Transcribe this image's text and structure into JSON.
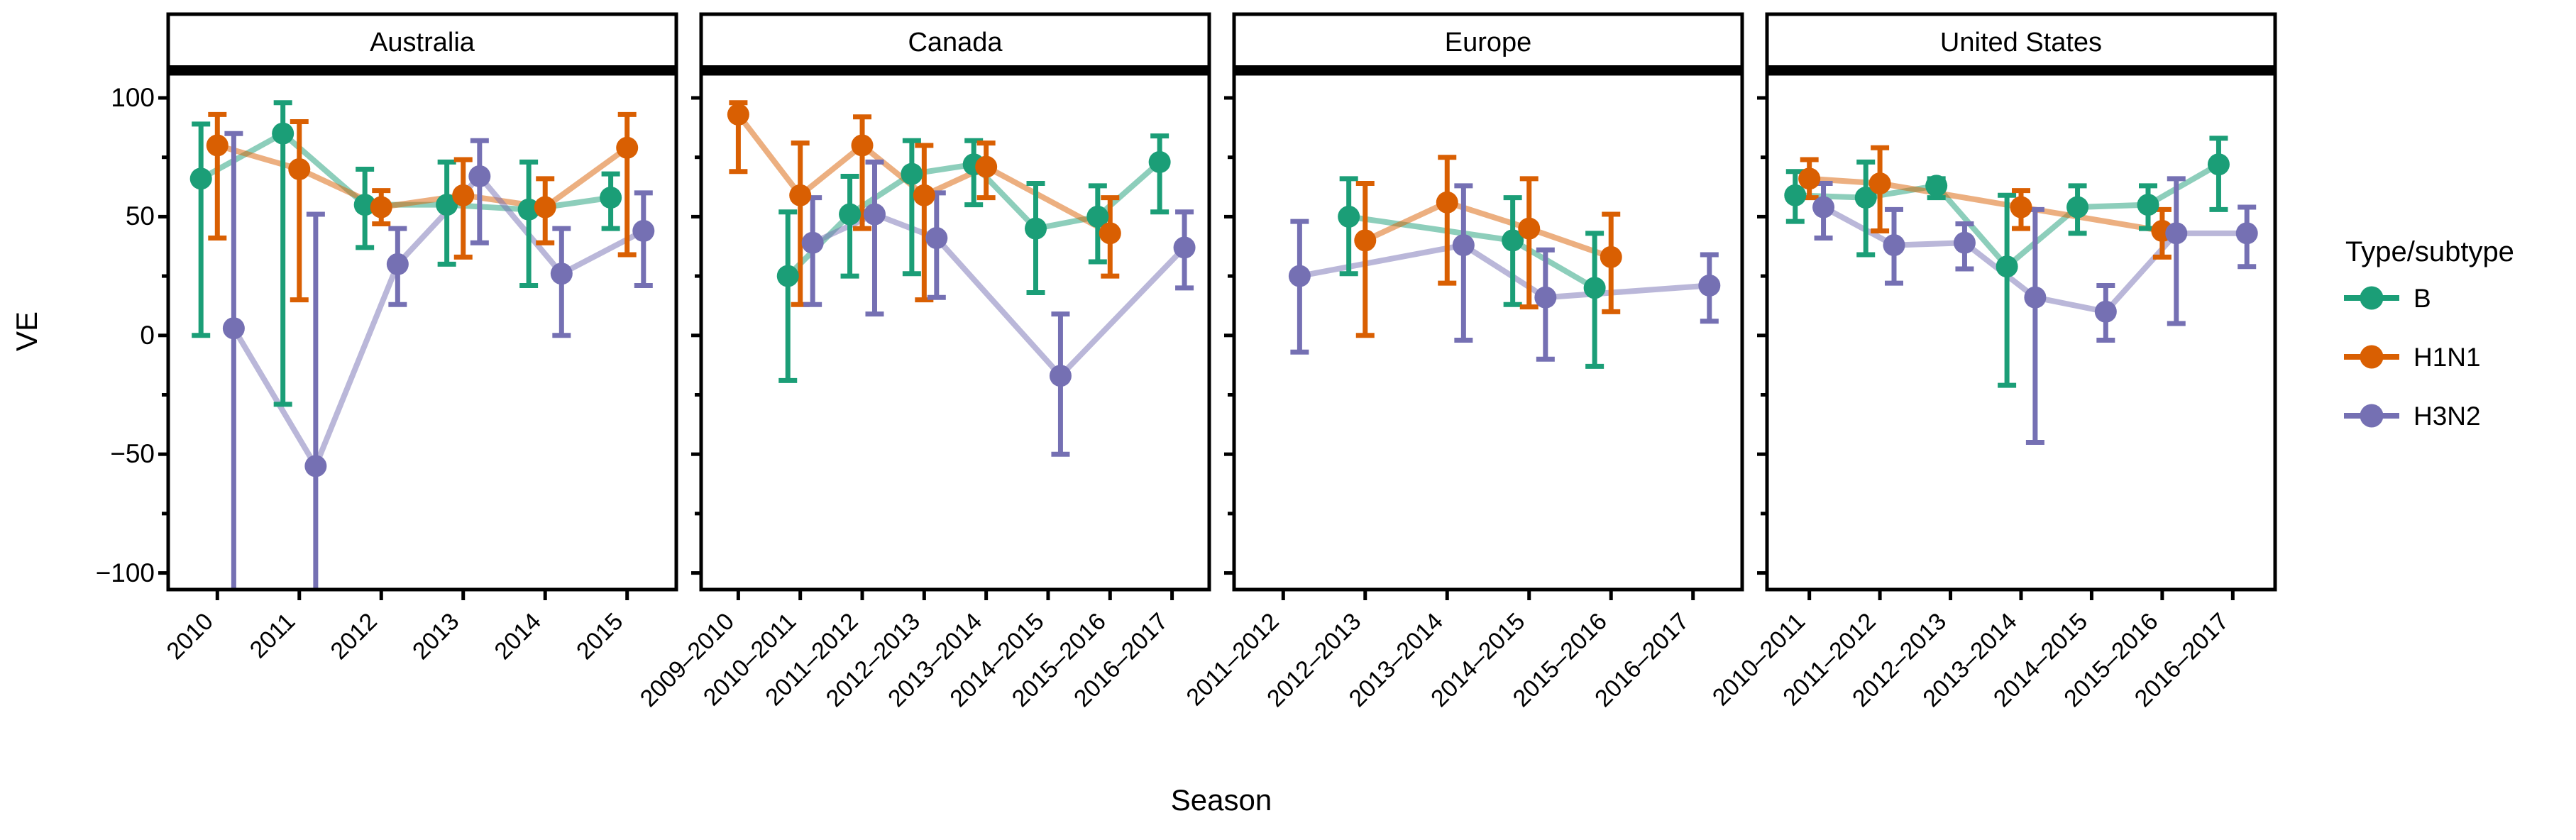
{
  "chart_data": {
    "type": "line",
    "title": "",
    "xlabel": "Season",
    "ylabel": "VE",
    "ylim": [
      -107,
      110
    ],
    "grid": false,
    "yticks": [
      {
        "value": 100,
        "label": "100"
      },
      {
        "value": 50,
        "label": "50"
      },
      {
        "value": 0,
        "label": "0"
      },
      {
        "value": -50,
        "label": "−50"
      },
      {
        "value": -100,
        "label": "−100"
      }
    ],
    "yticks_minor": [
      75,
      25,
      -25,
      -75
    ],
    "legend": {
      "title": "Type/subtype",
      "position": "right",
      "entries": [
        {
          "name": "B",
          "label": "B",
          "color": "#1B9E77"
        },
        {
          "name": "H1N1",
          "label": "H1N1",
          "color": "#D95F02"
        },
        {
          "name": "H3N2",
          "label": "H3N2",
          "color": "#7570B3"
        }
      ]
    },
    "panels": [
      {
        "title": "Australia",
        "categories": [
          "2010",
          "2011",
          "2012",
          "2013",
          "2014",
          "2015"
        ],
        "series": [
          {
            "name": "B",
            "color": "#1B9E77",
            "points": [
              {
                "x": "2010",
                "y": 66,
                "lo": 0,
                "hi": 89
              },
              {
                "x": "2011",
                "y": 85,
                "lo": -29,
                "hi": 98
              },
              {
                "x": "2012",
                "y": 55,
                "lo": 37,
                "hi": 70
              },
              {
                "x": "2013",
                "y": 55,
                "lo": 30,
                "hi": 73
              },
              {
                "x": "2014",
                "y": 53,
                "lo": 21,
                "hi": 73
              },
              {
                "x": "2015",
                "y": 58,
                "lo": 45,
                "hi": 68
              }
            ]
          },
          {
            "name": "H1N1",
            "color": "#D95F02",
            "points": [
              {
                "x": "2010",
                "y": 80,
                "lo": 41,
                "hi": 93
              },
              {
                "x": "2011",
                "y": 70,
                "lo": 15,
                "hi": 90
              },
              {
                "x": "2012",
                "y": 54,
                "lo": 47,
                "hi": 61
              },
              {
                "x": "2013",
                "y": 59,
                "lo": 33,
                "hi": 74
              },
              {
                "x": "2014",
                "y": 54,
                "lo": 39,
                "hi": 66
              },
              {
                "x": "2015",
                "y": 79,
                "lo": 34,
                "hi": 93
              }
            ]
          },
          {
            "name": "H3N2",
            "color": "#7570B3",
            "points": [
              {
                "x": "2010",
                "y": 3,
                "lo": -120,
                "hi": 85
              },
              {
                "x": "2011",
                "y": -55,
                "lo": -120,
                "hi": 51
              },
              {
                "x": "2012",
                "y": 30,
                "lo": 13,
                "hi": 45
              },
              {
                "x": "2013",
                "y": 67,
                "lo": 39,
                "hi": 82
              },
              {
                "x": "2014",
                "y": 26,
                "lo": 0,
                "hi": 45
              },
              {
                "x": "2015",
                "y": 44,
                "lo": 21,
                "hi": 60
              }
            ]
          }
        ]
      },
      {
        "title": "Canada",
        "categories": [
          "2009–2010",
          "2010–2011",
          "2011–2012",
          "2012–2013",
          "2013–2014",
          "2014–2015",
          "2015–2016",
          "2016–2017"
        ],
        "series": [
          {
            "name": "B",
            "color": "#1B9E77",
            "points": [
              {
                "x": "2010–2011",
                "y": 25,
                "lo": -19,
                "hi": 52
              },
              {
                "x": "2011–2012",
                "y": 51,
                "lo": 25,
                "hi": 67
              },
              {
                "x": "2012–2013",
                "y": 68,
                "lo": 26,
                "hi": 82
              },
              {
                "x": "2013–2014",
                "y": 72,
                "lo": 55,
                "hi": 82
              },
              {
                "x": "2014–2015",
                "y": 45,
                "lo": 18,
                "hi": 64
              },
              {
                "x": "2015–2016",
                "y": 50,
                "lo": 31,
                "hi": 63
              },
              {
                "x": "2016–2017",
                "y": 73,
                "lo": 52,
                "hi": 84
              }
            ]
          },
          {
            "name": "H1N1",
            "color": "#D95F02",
            "points": [
              {
                "x": "2009–2010",
                "y": 93,
                "lo": 69,
                "hi": 98
              },
              {
                "x": "2010–2011",
                "y": 59,
                "lo": 13,
                "hi": 81
              },
              {
                "x": "2011–2012",
                "y": 80,
                "lo": 45,
                "hi": 92
              },
              {
                "x": "2012–2013",
                "y": 59,
                "lo": 15,
                "hi": 80
              },
              {
                "x": "2013–2014",
                "y": 71,
                "lo": 58,
                "hi": 81
              },
              {
                "x": "2015–2016",
                "y": 43,
                "lo": 25,
                "hi": 58
              }
            ]
          },
          {
            "name": "H3N2",
            "color": "#7570B3",
            "points": [
              {
                "x": "2010–2011",
                "y": 39,
                "lo": 13,
                "hi": 58
              },
              {
                "x": "2011–2012",
                "y": 51,
                "lo": 9,
                "hi": 73
              },
              {
                "x": "2012–2013",
                "y": 41,
                "lo": 16,
                "hi": 60
              },
              {
                "x": "2014–2015",
                "y": -17,
                "lo": -50,
                "hi": 9
              },
              {
                "x": "2016–2017",
                "y": 37,
                "lo": 20,
                "hi": 52
              }
            ]
          }
        ]
      },
      {
        "title": "Europe",
        "categories": [
          "2011–2012",
          "2012–2013",
          "2013–2014",
          "2014–2015",
          "2015–2016",
          "2016–2017"
        ],
        "series": [
          {
            "name": "B",
            "color": "#1B9E77",
            "points": [
              {
                "x": "2012–2013",
                "y": 50,
                "lo": 26,
                "hi": 66
              },
              {
                "x": "2014–2015",
                "y": 40,
                "lo": 13,
                "hi": 58
              },
              {
                "x": "2015–2016",
                "y": 20,
                "lo": -13,
                "hi": 43
              }
            ]
          },
          {
            "name": "H1N1",
            "color": "#D95F02",
            "points": [
              {
                "x": "2012–2013",
                "y": 40,
                "lo": 0,
                "hi": 64
              },
              {
                "x": "2013–2014",
                "y": 56,
                "lo": 22,
                "hi": 75
              },
              {
                "x": "2014–2015",
                "y": 45,
                "lo": 12,
                "hi": 66
              },
              {
                "x": "2015–2016",
                "y": 33,
                "lo": 10,
                "hi": 51
              }
            ]
          },
          {
            "name": "H3N2",
            "color": "#7570B3",
            "points": [
              {
                "x": "2011–2012",
                "y": 25,
                "lo": -7,
                "hi": 48
              },
              {
                "x": "2013–2014",
                "y": 38,
                "lo": -2,
                "hi": 63
              },
              {
                "x": "2014–2015",
                "y": 16,
                "lo": -10,
                "hi": 36
              },
              {
                "x": "2016–2017",
                "y": 21,
                "lo": 6,
                "hi": 34
              }
            ]
          }
        ]
      },
      {
        "title": "United States",
        "categories": [
          "2010–2011",
          "2011–2012",
          "2012–2013",
          "2013–2014",
          "2014–2015",
          "2015–2016",
          "2016–2017"
        ],
        "series": [
          {
            "name": "B",
            "color": "#1B9E77",
            "points": [
              {
                "x": "2010–2011",
                "y": 59,
                "lo": 48,
                "hi": 69
              },
              {
                "x": "2011–2012",
                "y": 58,
                "lo": 34,
                "hi": 73
              },
              {
                "x": "2012–2013",
                "y": 63,
                "lo": 58,
                "hi": 66
              },
              {
                "x": "2013–2014",
                "y": 29,
                "lo": -21,
                "hi": 59
              },
              {
                "x": "2014–2015",
                "y": 54,
                "lo": 43,
                "hi": 63
              },
              {
                "x": "2015–2016",
                "y": 55,
                "lo": 45,
                "hi": 63
              },
              {
                "x": "2016–2017",
                "y": 72,
                "lo": 53,
                "hi": 83
              }
            ]
          },
          {
            "name": "H1N1",
            "color": "#D95F02",
            "points": [
              {
                "x": "2010–2011",
                "y": 66,
                "lo": 58,
                "hi": 74
              },
              {
                "x": "2011–2012",
                "y": 64,
                "lo": 44,
                "hi": 79
              },
              {
                "x": "2013–2014",
                "y": 54,
                "lo": 45,
                "hi": 61
              },
              {
                "x": "2015–2016",
                "y": 44,
                "lo": 33,
                "hi": 53
              }
            ]
          },
          {
            "name": "H3N2",
            "color": "#7570B3",
            "points": [
              {
                "x": "2010–2011",
                "y": 54,
                "lo": 41,
                "hi": 64
              },
              {
                "x": "2011–2012",
                "y": 38,
                "lo": 22,
                "hi": 53
              },
              {
                "x": "2012–2013",
                "y": 39,
                "lo": 28,
                "hi": 47
              },
              {
                "x": "2013–2014",
                "y": 16,
                "lo": -45,
                "hi": 53
              },
              {
                "x": "2014–2015",
                "y": 10,
                "lo": -2,
                "hi": 21
              },
              {
                "x": "2015–2016",
                "y": 43,
                "lo": 5,
                "hi": 66
              },
              {
                "x": "2016–2017",
                "y": 43,
                "lo": 29,
                "hi": 54
              }
            ]
          }
        ]
      }
    ]
  }
}
